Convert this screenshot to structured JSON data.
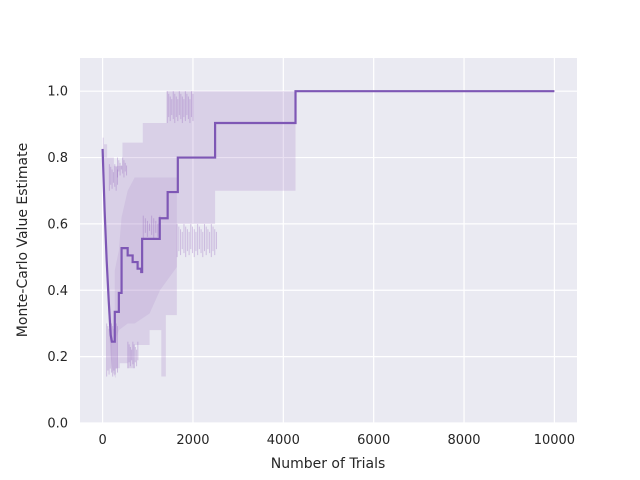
{
  "figure": {
    "background": "#ffffff",
    "axes_background": "#eaeaf2",
    "grid_color": "#ffffff",
    "tick_label_color": "#262626",
    "axis_label_color": "#262626"
  },
  "chart_data": {
    "type": "line",
    "title": "",
    "xlabel": "Number of Trials",
    "ylabel": "Monte-Carlo Value Estimate",
    "xlim": [
      -500,
      10500
    ],
    "ylim": [
      0,
      1.1
    ],
    "grid": true,
    "legend_position": "none",
    "xticks": [
      "0",
      "2000",
      "4000",
      "6000",
      "8000",
      "10000"
    ],
    "xtick_values": [
      0,
      2000,
      4000,
      6000,
      8000,
      10000
    ],
    "yticks": [
      "0.0",
      "0.2",
      "0.4",
      "0.6",
      "0.8",
      "1.0"
    ],
    "ytick_values": [
      0,
      0.2,
      0.4,
      0.6,
      0.8,
      1.0
    ],
    "series": [
      {
        "name": "monte-carlo-value-estimate",
        "color": "#7e57b5",
        "linewidth": 2.2,
        "points": [
          [
            0,
            0.826
          ],
          [
            45,
            0.64
          ],
          [
            90,
            0.49
          ],
          [
            135,
            0.37
          ],
          [
            180,
            0.265
          ],
          [
            205,
            0.245
          ],
          [
            270,
            0.245
          ],
          [
            270,
            0.335
          ],
          [
            360,
            0.335
          ],
          [
            360,
            0.392
          ],
          [
            420,
            0.392
          ],
          [
            420,
            0.527
          ],
          [
            555,
            0.527
          ],
          [
            555,
            0.505
          ],
          [
            665,
            0.505
          ],
          [
            665,
            0.485
          ],
          [
            775,
            0.485
          ],
          [
            775,
            0.465
          ],
          [
            855,
            0.465
          ],
          [
            855,
            0.455
          ],
          [
            875,
            0.455
          ],
          [
            875,
            0.555
          ],
          [
            1265,
            0.555
          ],
          [
            1265,
            0.617
          ],
          [
            1440,
            0.617
          ],
          [
            1440,
            0.696
          ],
          [
            1665,
            0.696
          ],
          [
            1665,
            0.8
          ],
          [
            2490,
            0.8
          ],
          [
            2490,
            0.904
          ],
          [
            4270,
            0.904
          ],
          [
            4270,
            1.0
          ],
          [
            10000,
            1.0
          ]
        ]
      }
    ],
    "confidence_band": {
      "color": "#9467bd",
      "opacity": 0.2,
      "upper": [
        [
          0,
          0.86
        ],
        [
          30,
          0.86
        ],
        [
          30,
          0.84
        ],
        [
          100,
          0.84
        ],
        [
          100,
          0.8
        ],
        [
          250,
          0.8
        ],
        [
          250,
          0.775
        ],
        [
          440,
          0.775
        ],
        [
          440,
          0.845
        ],
        [
          890,
          0.845
        ],
        [
          890,
          0.904
        ],
        [
          1420,
          0.904
        ],
        [
          1420,
          1.0
        ],
        [
          4270,
          1.0
        ]
      ],
      "lower": [
        [
          0,
          0.79
        ],
        [
          45,
          0.6
        ],
        [
          90,
          0.44
        ],
        [
          135,
          0.31
        ],
        [
          180,
          0.2
        ],
        [
          220,
          0.155
        ],
        [
          290,
          0.135
        ],
        [
          290,
          0.165
        ],
        [
          380,
          0.165
        ],
        [
          380,
          0.18
        ],
        [
          555,
          0.18
        ],
        [
          555,
          0.165
        ],
        [
          710,
          0.165
        ],
        [
          710,
          0.235
        ],
        [
          1040,
          0.235
        ],
        [
          1040,
          0.28
        ],
        [
          1300,
          0.28
        ],
        [
          1300,
          0.14
        ],
        [
          1400,
          0.14
        ],
        [
          1400,
          0.325
        ],
        [
          1644,
          0.325
        ],
        [
          1644,
          0.6
        ],
        [
          2490,
          0.6
        ],
        [
          2490,
          0.7
        ],
        [
          4270,
          0.7
        ]
      ]
    },
    "inner_band": {
      "opacity": 0.13,
      "upper": [
        [
          270,
          0.46
        ],
        [
          360,
          0.52
        ],
        [
          420,
          0.62
        ],
        [
          555,
          0.7
        ],
        [
          710,
          0.74
        ],
        [
          1644,
          0.74
        ]
      ],
      "lower": [
        [
          270,
          0.245
        ],
        [
          360,
          0.28
        ],
        [
          555,
          0.3
        ],
        [
          710,
          0.3
        ],
        [
          1040,
          0.33
        ],
        [
          1270,
          0.4
        ],
        [
          1644,
          0.47
        ]
      ]
    },
    "striation_regions": [
      {
        "x0": 1430,
        "x1": 2000,
        "y0": 0.904,
        "y1": 1.0,
        "n": 18
      },
      {
        "x0": 1650,
        "x1": 2520,
        "y0": 0.5,
        "y1": 0.6,
        "n": 24
      },
      {
        "x0": 90,
        "x1": 330,
        "y0": 0.14,
        "y1": 0.3,
        "n": 10
      },
      {
        "x0": 560,
        "x1": 780,
        "y0": 0.165,
        "y1": 0.245,
        "n": 9
      },
      {
        "x0": 330,
        "x1": 530,
        "y0": 0.74,
        "y1": 0.8,
        "n": 8
      },
      {
        "x0": 150,
        "x1": 330,
        "y0": 0.7,
        "y1": 0.78,
        "n": 7
      },
      {
        "x0": 900,
        "x1": 1270,
        "y0": 0.555,
        "y1": 0.625,
        "n": 9
      }
    ]
  }
}
